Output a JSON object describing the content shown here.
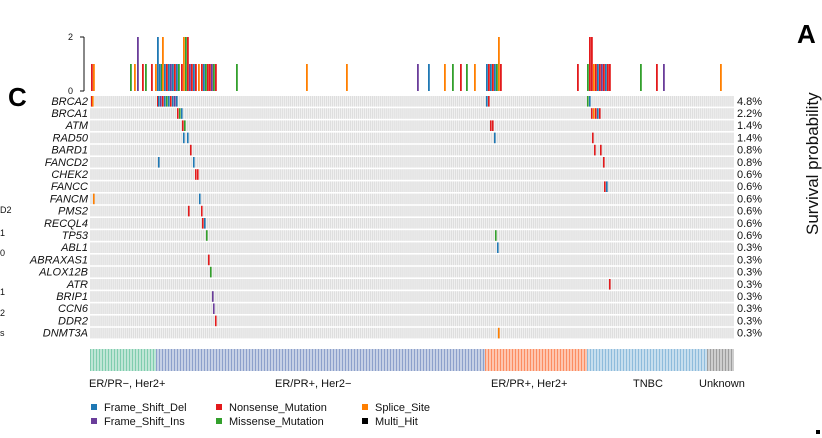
{
  "panel_label_c": "C",
  "panel_label_a": "A",
  "side_axis_label": "Survival probability",
  "left_cut_labels": [
    "D2",
    "1",
    "0",
    "1",
    "2",
    "s"
  ],
  "colors": {
    "Frame_Shift_Del": "#1f78b4",
    "Frame_Shift_Ins": "#6a3d9a",
    "Nonsense_Mutation": "#e31a1c",
    "Missense_Mutation": "#33a02c",
    "Splice_Site": "#ff7f00",
    "Multi_Hit": "#000000",
    "background": "#dedede"
  },
  "chart_data": {
    "type": "heatmap",
    "top_bar": {
      "ylim": [
        0,
        2
      ],
      "ticks": [
        "2",
        "0"
      ]
    },
    "genes": [
      {
        "name": "BRCA2",
        "pct": "4.8%"
      },
      {
        "name": "BRCA1",
        "pct": "2.2%"
      },
      {
        "name": "ATM",
        "pct": "1.4%"
      },
      {
        "name": "RAD50",
        "pct": "1.4%"
      },
      {
        "name": "BARD1",
        "pct": "0.8%"
      },
      {
        "name": "FANCD2",
        "pct": "0.8%"
      },
      {
        "name": "CHEK2",
        "pct": "0.6%"
      },
      {
        "name": "FANCC",
        "pct": "0.6%"
      },
      {
        "name": "FANCM",
        "pct": "0.6%"
      },
      {
        "name": "PMS2",
        "pct": "0.6%"
      },
      {
        "name": "RECQL4",
        "pct": "0.6%"
      },
      {
        "name": "TP53",
        "pct": "0.6%"
      },
      {
        "name": "ABL1",
        "pct": "0.3%"
      },
      {
        "name": "ABRAXAS1",
        "pct": "0.3%"
      },
      {
        "name": "ALOX12B",
        "pct": "0.3%"
      },
      {
        "name": "ATR",
        "pct": "0.3%"
      },
      {
        "name": "BRIP1",
        "pct": "0.3%"
      },
      {
        "name": "CCN6",
        "pct": "0.3%"
      },
      {
        "name": "DDR2",
        "pct": "0.3%"
      },
      {
        "name": "DNMT3A",
        "pct": "0.3%"
      }
    ],
    "subtypes": [
      {
        "label": "ER/PR−, Her2+",
        "color": "#7fcdae"
      },
      {
        "label": "ER/PR+, Her2−",
        "color": "#8da0cb"
      },
      {
        "label": "ER/PR+, Her2+",
        "color": "#fc8d62"
      },
      {
        "label": "TNBC",
        "color": "#8fbcdc"
      },
      {
        "label": "Unknown",
        "color": "#9e9e9e"
      }
    ],
    "legend": [
      {
        "label": "Frame_Shift_Del",
        "key": "Frame_Shift_Del"
      },
      {
        "label": "Frame_Shift_Ins",
        "key": "Frame_Shift_Ins"
      },
      {
        "label": "Nonsense_Mutation",
        "key": "Nonsense_Mutation"
      },
      {
        "label": "Missense_Mutation",
        "key": "Missense_Mutation"
      },
      {
        "label": "Splice_Site",
        "key": "Splice_Site"
      },
      {
        "label": "Multi_Hit",
        "key": "Multi_Hit"
      }
    ]
  }
}
